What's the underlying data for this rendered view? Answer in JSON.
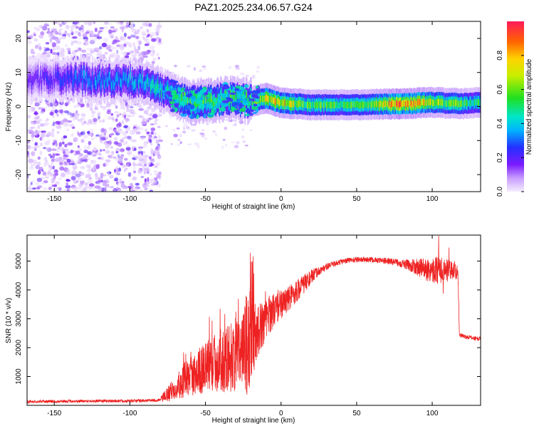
{
  "title": "PAZ1.2025.234.06.57.G24",
  "chart_data": [
    {
      "type": "heatmap",
      "title": "PAZ1.2025.234.06.57.G24",
      "xlabel": "Height of straight line (km)",
      "ylabel": "Frequency (Hz)",
      "xlim": [
        -168,
        132
      ],
      "ylim": [
        -25,
        25
      ],
      "xticks": [
        -150,
        -100,
        -50,
        0,
        50,
        100
      ],
      "yticks": [
        -20,
        -10,
        0,
        10,
        20
      ],
      "colorbar": {
        "label": "Normalized spectral amplitude",
        "range": [
          0,
          1
        ],
        "ticks": [
          0.0,
          0.2,
          0.4,
          0.6,
          0.8
        ]
      },
      "ridge": {
        "description_points_height_km": [
          -160,
          -130,
          -110,
          -90,
          -80,
          -70,
          -60,
          -50,
          -40,
          -30,
          -20,
          -10,
          0,
          20,
          50,
          80,
          100,
          120,
          132
        ],
        "frequency_hz": [
          8,
          8,
          7.5,
          7,
          5,
          3,
          1,
          1.5,
          2,
          2,
          1.5,
          2.5,
          1,
          0.5,
          0.5,
          0.8,
          1.2,
          0.8,
          1.2
        ],
        "amplitude": [
          0.15,
          0.3,
          0.3,
          0.35,
          0.4,
          0.45,
          0.5,
          0.5,
          0.5,
          0.45,
          0.5,
          0.65,
          0.7,
          0.5,
          0.5,
          0.85,
          0.6,
          0.5,
          0.45
        ]
      }
    },
    {
      "type": "line",
      "xlabel": "Height of straight line (km)",
      "ylabel": "SNR (10 * v/v)",
      "xlim": [
        -168,
        132
      ],
      "ylim": [
        0,
        5900
      ],
      "xticks": [
        -150,
        -100,
        -50,
        0,
        50,
        100
      ],
      "yticks": [
        1000,
        2000,
        3000,
        4000,
        5000
      ],
      "series": [
        {
          "name": "SNR",
          "color": "#ee2222",
          "x": [
            -168,
            -150,
            -130,
            -110,
            -90,
            -80,
            -76,
            -70,
            -65,
            -60,
            -55,
            -50,
            -45,
            -40,
            -35,
            -30,
            -25,
            -22,
            -20,
            -15,
            -10,
            -5,
            0,
            5,
            10,
            15,
            20,
            25,
            30,
            35,
            40,
            45,
            50,
            55,
            60,
            65,
            70,
            75,
            80,
            85,
            90,
            95,
            100,
            105,
            110,
            115,
            117,
            118,
            120,
            125,
            132
          ],
          "y": [
            130,
            140,
            150,
            150,
            160,
            180,
            350,
            600,
            850,
            1000,
            1150,
            1300,
            1450,
            1550,
            1650,
            1750,
            1900,
            2100,
            2300,
            2600,
            3000,
            3300,
            3500,
            3700,
            3950,
            4200,
            4450,
            4650,
            4800,
            4900,
            4980,
            5030,
            5050,
            5050,
            5040,
            5020,
            5000,
            4970,
            4920,
            4850,
            4780,
            4720,
            4700,
            4700,
            4680,
            4650,
            4600,
            2450,
            2400,
            2350,
            2300
          ],
          "noise": [
            50,
            50,
            50,
            50,
            50,
            60,
            250,
            400,
            600,
            700,
            800,
            900,
            1000,
            1100,
            1200,
            1300,
            1500,
            2000,
            1500,
            900,
            700,
            600,
            500,
            450,
            400,
            350,
            250,
            150,
            120,
            100,
            100,
            100,
            100,
            100,
            100,
            100,
            110,
            120,
            150,
            200,
            300,
            400,
            450,
            500,
            400,
            300,
            200,
            80,
            80,
            80,
            80
          ]
        }
      ]
    }
  ]
}
